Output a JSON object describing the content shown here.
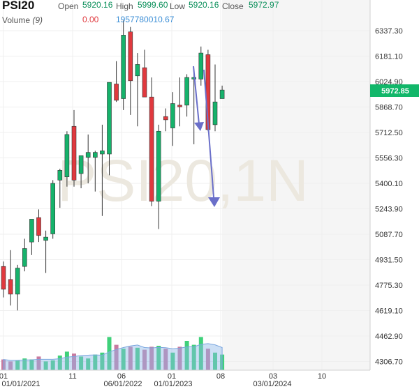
{
  "header": {
    "symbol": "PSI20",
    "open_label": "Open",
    "open": "5920.16",
    "high_label": "High",
    "high": "5999.60",
    "low_label": "Low",
    "low": "5920.16",
    "close_label": "Close",
    "close": "5972.97",
    "volume_label": "Volume",
    "volume_period": "(9)",
    "volume_value_1": "0.00",
    "volume_value_2": "1957780010.67"
  },
  "watermark": "PSI20,1N",
  "colors": {
    "up": "#16b26b",
    "down": "#e0393e",
    "volume_up": "#3fd17a",
    "volume_down": "#c87aa0",
    "volume_ma": "#8fb8e8",
    "arrow": "#6a6fc9",
    "price_tag": "#12b76a"
  },
  "chart_data": {
    "type": "candlestick",
    "current_price": "5972.85",
    "y_ticks": [
      "6337.30",
      "6181.10",
      "6024.90",
      "5868.70",
      "5712.50",
      "5556.30",
      "5400.10",
      "5243.90",
      "5087.70",
      "4931.50",
      "4775.30",
      "4619.10",
      "4462.90",
      "4306.70"
    ],
    "ylim": [
      4290,
      6420
    ],
    "x_ticks_upper": [
      "01",
      "11",
      "06",
      "01",
      "08",
      "03",
      "10"
    ],
    "x_ticks_lower": [
      "01/01/2021",
      "06/01/2022",
      "01/01/2023",
      "03/01/2024"
    ],
    "candles": [
      {
        "o": 4890,
        "h": 4920,
        "l": 4700,
        "c": 4750
      },
      {
        "o": 4810,
        "h": 4990,
        "l": 4650,
        "c": 4720
      },
      {
        "o": 4720,
        "h": 4900,
        "l": 4620,
        "c": 4880
      },
      {
        "o": 4890,
        "h": 5060,
        "l": 4860,
        "c": 5000
      },
      {
        "o": 5040,
        "h": 5160,
        "l": 4960,
        "c": 5180
      },
      {
        "o": 5190,
        "h": 5240,
        "l": 5040,
        "c": 5080
      },
      {
        "o": 5050,
        "h": 5110,
        "l": 4850,
        "c": 5070
      },
      {
        "o": 5090,
        "h": 5420,
        "l": 5060,
        "c": 5400
      },
      {
        "o": 5420,
        "h": 5490,
        "l": 5250,
        "c": 5480
      },
      {
        "o": 5440,
        "h": 5720,
        "l": 5380,
        "c": 5700
      },
      {
        "o": 5750,
        "h": 5850,
        "l": 5380,
        "c": 5420
      },
      {
        "o": 5460,
        "h": 5570,
        "l": 5370,
        "c": 5570
      },
      {
        "o": 5560,
        "h": 5700,
        "l": 5400,
        "c": 5590
      },
      {
        "o": 5560,
        "h": 5600,
        "l": 5350,
        "c": 5590
      },
      {
        "o": 5580,
        "h": 5760,
        "l": 5200,
        "c": 5600
      },
      {
        "o": 5580,
        "h": 6020,
        "l": 5450,
        "c": 6020
      },
      {
        "o": 6010,
        "h": 6150,
        "l": 5900,
        "c": 5910
      },
      {
        "o": 5920,
        "h": 6400,
        "l": 5850,
        "c": 6310
      },
      {
        "o": 6330,
        "h": 6360,
        "l": 5820,
        "c": 6030
      },
      {
        "o": 6060,
        "h": 6200,
        "l": 5750,
        "c": 6130
      },
      {
        "o": 6110,
        "h": 6220,
        "l": 5930,
        "c": 5930
      },
      {
        "o": 5930,
        "h": 6050,
        "l": 5260,
        "c": 5290
      },
      {
        "o": 5290,
        "h": 5760,
        "l": 5120,
        "c": 5720
      },
      {
        "o": 5810,
        "h": 5860,
        "l": 5720,
        "c": 5790
      },
      {
        "o": 5740,
        "h": 5960,
        "l": 5630,
        "c": 5890
      },
      {
        "o": 5880,
        "h": 6050,
        "l": 5750,
        "c": 5870
      },
      {
        "o": 5880,
        "h": 6070,
        "l": 5810,
        "c": 6050
      },
      {
        "o": 6040,
        "h": 6080,
        "l": 5640,
        "c": 6050
      },
      {
        "o": 6040,
        "h": 6240,
        "l": 6000,
        "c": 6200
      },
      {
        "o": 6190,
        "h": 6220,
        "l": 5720,
        "c": 5730
      },
      {
        "o": 5760,
        "h": 6130,
        "l": 5720,
        "c": 5900
      },
      {
        "o": 5920,
        "h": 6000,
        "l": 5920,
        "c": 5973
      }
    ],
    "volume": [
      0.55,
      0.45,
      0.5,
      0.6,
      0.55,
      0.7,
      0.45,
      0.5,
      0.75,
      0.95,
      0.85,
      0.7,
      0.6,
      0.8,
      0.9,
      1.7,
      1.3,
      1.1,
      1.2,
      1.15,
      1.05,
      1.2,
      1.25,
      1.1,
      0.9,
      1.2,
      1.5,
      1.3,
      1.7,
      1.1,
      0.9,
      0.8
    ]
  }
}
